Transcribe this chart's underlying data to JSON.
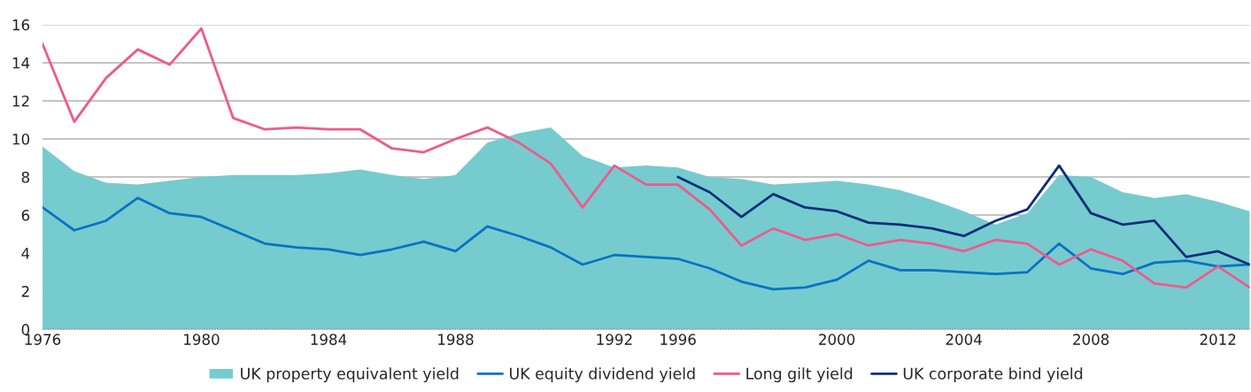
{
  "chart_data": {
    "type": "line",
    "categories": [
      "1976",
      null,
      null,
      null,
      null,
      "1980",
      null,
      null,
      null,
      "1984",
      null,
      null,
      null,
      "1988",
      null,
      null,
      null,
      null,
      "1992",
      null,
      "1996",
      null,
      null,
      null,
      null,
      "2000",
      null,
      null,
      null,
      "2004",
      null,
      null,
      null,
      "2008",
      null,
      null,
      null,
      "2012",
      null
    ],
    "series": [
      {
        "name": "UK property equivalent yield",
        "type": "area",
        "color": "#76cbcf",
        "values": [
          9.6,
          8.3,
          7.7,
          7.6,
          7.8,
          8.0,
          8.1,
          8.1,
          8.1,
          8.2,
          8.4,
          8.1,
          7.9,
          8.1,
          9.8,
          10.3,
          10.6,
          9.1,
          8.5,
          8.6,
          8.5,
          8.0,
          7.9,
          7.6,
          7.7,
          7.8,
          7.6,
          7.3,
          6.8,
          6.2,
          5.5,
          6.1,
          8.1,
          8.0,
          7.2,
          6.9,
          7.1,
          6.7,
          6.2
        ]
      },
      {
        "name": "UK equity dividend yield",
        "color": "#0a72c3",
        "values": [
          6.4,
          5.2,
          5.7,
          6.9,
          6.1,
          5.9,
          5.2,
          4.5,
          4.3,
          4.2,
          3.9,
          4.2,
          4.6,
          4.1,
          5.4,
          4.9,
          4.3,
          3.4,
          3.9,
          3.8,
          3.7,
          3.2,
          2.5,
          2.1,
          2.2,
          2.6,
          3.6,
          3.1,
          3.1,
          3.0,
          2.9,
          3.0,
          4.5,
          3.2,
          2.9,
          3.5,
          3.6,
          3.3,
          3.4
        ]
      },
      {
        "name": "Long gilt yield",
        "color": "#ef5a8a",
        "values": [
          15.0,
          10.9,
          13.2,
          14.7,
          13.9,
          15.8,
          11.1,
          10.5,
          10.6,
          10.5,
          10.5,
          9.5,
          9.3,
          10.0,
          10.6,
          9.8,
          8.7,
          6.4,
          8.6,
          7.6,
          7.6,
          6.3,
          4.4,
          5.3,
          4.7,
          5.0,
          4.4,
          4.7,
          4.5,
          4.1,
          4.7,
          4.5,
          3.4,
          4.2,
          3.6,
          2.4,
          2.2,
          3.3,
          2.2
        ]
      },
      {
        "name": "UK corporate bind yield",
        "color": "#0d2f7a",
        "values": [
          null,
          null,
          null,
          null,
          null,
          null,
          null,
          null,
          null,
          null,
          null,
          null,
          null,
          null,
          null,
          null,
          null,
          null,
          null,
          null,
          8.0,
          7.2,
          5.9,
          7.1,
          6.4,
          6.2,
          5.6,
          5.5,
          5.3,
          4.9,
          5.7,
          6.3,
          8.6,
          6.1,
          5.5,
          5.7,
          3.8,
          4.1,
          3.4
        ]
      }
    ],
    "ylim": [
      0,
      16
    ],
    "yticks": [
      0,
      2,
      4,
      6,
      8,
      10,
      12,
      14,
      16
    ],
    "grid": "y",
    "legend": "bottom",
    "marker": "none",
    "line_style": "solid"
  }
}
